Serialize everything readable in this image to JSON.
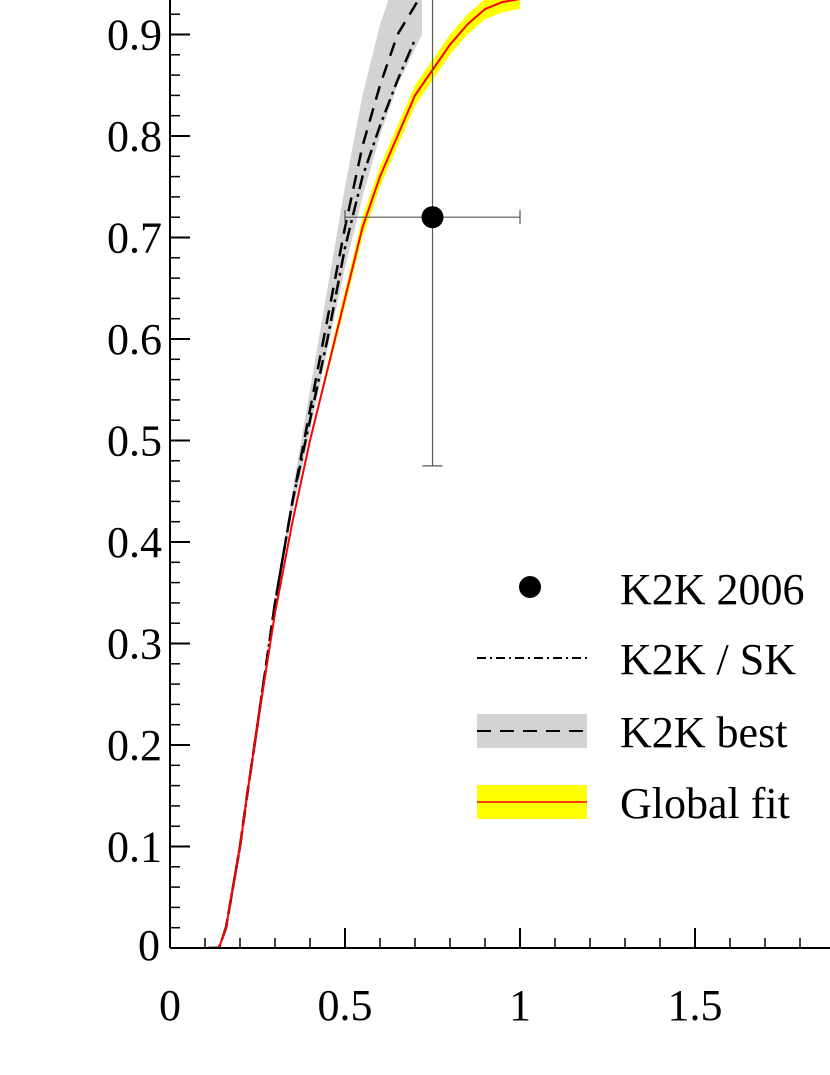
{
  "chart_data": {
    "type": "line",
    "title": "",
    "xlabel": "",
    "ylabel": "",
    "xlim": [
      0,
      1.884
    ],
    "ylim": [
      0,
      0.934
    ],
    "x_ticks": [
      {
        "value": 0,
        "label": "0"
      },
      {
        "value": 0.5,
        "label": "0.5"
      },
      {
        "value": 1,
        "label": "1"
      },
      {
        "value": 1.5,
        "label": "1.5"
      }
    ],
    "y_ticks": [
      {
        "value": 0,
        "label": "0"
      },
      {
        "value": 0.1,
        "label": "0.1"
      },
      {
        "value": 0.2,
        "label": "0.2"
      },
      {
        "value": 0.3,
        "label": "0.3"
      },
      {
        "value": 0.4,
        "label": "0.4"
      },
      {
        "value": 0.5,
        "label": "0.5"
      },
      {
        "value": 0.6,
        "label": "0.6"
      },
      {
        "value": 0.7,
        "label": "0.7"
      },
      {
        "value": 0.8,
        "label": "0.8"
      },
      {
        "value": 0.9,
        "label": "0.9"
      }
    ],
    "grid": false,
    "legend_position": "lower-right",
    "data_points": [
      {
        "name": "K2K 2006",
        "x": 0.75,
        "y": 0.72,
        "x_err": [
          0.25,
          0.25
        ],
        "y_err_low": 0.245,
        "y_err_high": 0.22,
        "color": "#000000"
      }
    ],
    "series": [
      {
        "name": "K2K / SK",
        "style": "dash-dot",
        "color": "#000000",
        "x": [
          0.11,
          0.14,
          0.16,
          0.18,
          0.2,
          0.22,
          0.25,
          0.3,
          0.35,
          0.4,
          0.45,
          0.5,
          0.55,
          0.6,
          0.65,
          0.7
        ],
        "y": [
          0,
          0,
          0.02,
          0.06,
          0.1,
          0.15,
          0.22,
          0.34,
          0.44,
          0.52,
          0.6,
          0.69,
          0.76,
          0.81,
          0.855,
          0.895
        ]
      },
      {
        "name": "K2K best",
        "style": "dashed",
        "color": "#000000",
        "band_color": "#d3d3d3",
        "x": [
          0.11,
          0.14,
          0.16,
          0.18,
          0.2,
          0.22,
          0.25,
          0.3,
          0.35,
          0.4,
          0.45,
          0.5,
          0.55,
          0.6,
          0.65,
          0.72
        ],
        "y": [
          0,
          0,
          0.02,
          0.06,
          0.1,
          0.15,
          0.22,
          0.34,
          0.44,
          0.53,
          0.62,
          0.71,
          0.79,
          0.85,
          0.9,
          0.94
        ],
        "band_low": [
          0,
          0,
          0.02,
          0.06,
          0.1,
          0.15,
          0.22,
          0.34,
          0.43,
          0.51,
          0.59,
          0.67,
          0.74,
          0.8,
          0.85,
          0.9
        ],
        "band_high": [
          0,
          0,
          0.02,
          0.06,
          0.1,
          0.15,
          0.22,
          0.34,
          0.45,
          0.55,
          0.65,
          0.75,
          0.84,
          0.91,
          0.96,
          1.0
        ]
      },
      {
        "name": "Global fit",
        "style": "solid",
        "color": "#ff0000",
        "band_color": "#ffff00",
        "x": [
          0.11,
          0.14,
          0.16,
          0.18,
          0.2,
          0.22,
          0.25,
          0.3,
          0.35,
          0.4,
          0.45,
          0.5,
          0.55,
          0.6,
          0.65,
          0.7,
          0.75,
          0.8,
          0.85,
          0.9,
          0.95,
          1.0
        ],
        "y": [
          0,
          0,
          0.02,
          0.06,
          0.1,
          0.15,
          0.22,
          0.33,
          0.42,
          0.5,
          0.57,
          0.64,
          0.71,
          0.76,
          0.8,
          0.84,
          0.865,
          0.89,
          0.91,
          0.925,
          0.932,
          0.935
        ],
        "band_low": [
          0,
          0,
          0.02,
          0.06,
          0.1,
          0.15,
          0.22,
          0.33,
          0.42,
          0.5,
          0.565,
          0.632,
          0.7,
          0.75,
          0.79,
          0.83,
          0.855,
          0.88,
          0.9,
          0.915,
          0.922,
          0.925
        ],
        "band_high": [
          0,
          0,
          0.02,
          0.06,
          0.1,
          0.15,
          0.22,
          0.33,
          0.42,
          0.5,
          0.575,
          0.648,
          0.72,
          0.77,
          0.81,
          0.85,
          0.875,
          0.9,
          0.92,
          0.935,
          0.942,
          0.945
        ]
      }
    ],
    "legend": [
      {
        "label": "K2K 2006",
        "marker": "dot",
        "color": "#000000"
      },
      {
        "label": "K2K / SK",
        "marker": "dash-dot",
        "color": "#000000"
      },
      {
        "label": "K2K best",
        "marker": "dashed-band",
        "color": "#000000",
        "band_color": "#d3d3d3"
      },
      {
        "label": "Global fit",
        "marker": "solid-band",
        "color": "#ff0000",
        "band_color": "#ffff00"
      }
    ]
  }
}
